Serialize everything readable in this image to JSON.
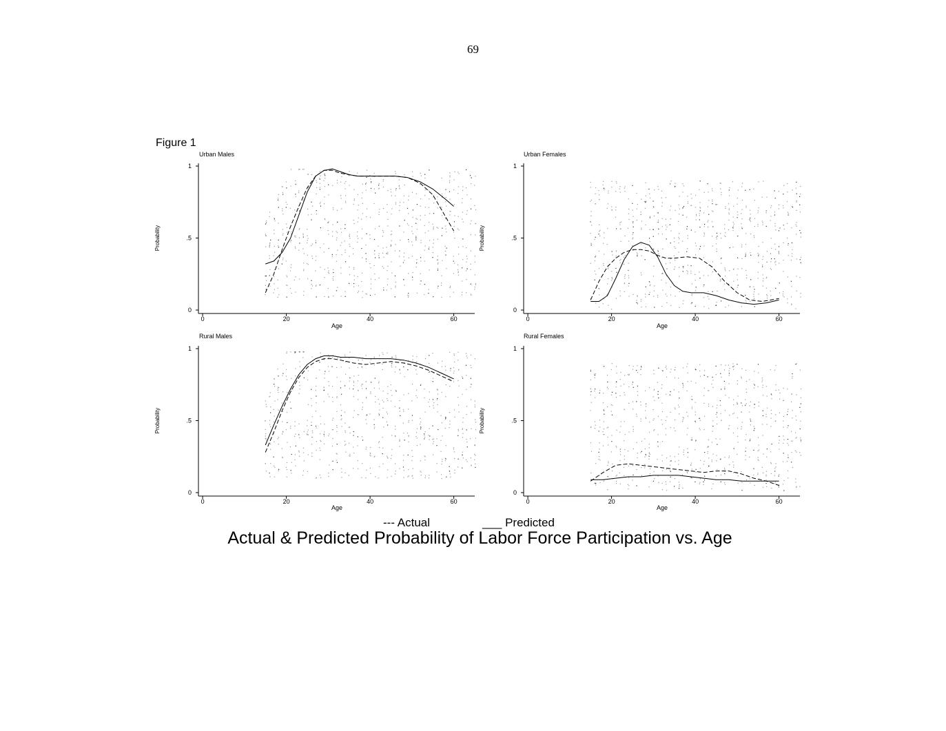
{
  "page_number": "69",
  "figure_label": "Figure 1",
  "legend": {
    "actual": "--- Actual",
    "predicted": "___ Predicted"
  },
  "caption": "Actual & Predicted Probability of Labor Force Participation vs. Age",
  "chart_data": [
    {
      "type": "line",
      "title": "Urban Males",
      "xlabel": "Age",
      "ylabel": "Probability",
      "xlim": [
        -1,
        65
      ],
      "ylim": [
        0,
        1
      ],
      "xticks": [
        0,
        20,
        40,
        60
      ],
      "xtick_labels": [
        "0",
        "20",
        "40",
        "60"
      ],
      "yticks": [
        0,
        0.5,
        1
      ],
      "ytick_labels": [
        "0",
        ".5",
        "1"
      ],
      "series": [
        {
          "style": "dashed",
          "x": [
            15,
            17,
            19,
            21,
            23,
            25,
            27,
            29,
            31,
            33,
            35,
            37,
            40,
            43,
            46,
            49,
            52,
            55,
            57,
            59,
            60
          ],
          "y": [
            0.12,
            0.25,
            0.42,
            0.58,
            0.72,
            0.85,
            0.93,
            0.97,
            0.97,
            0.95,
            0.94,
            0.93,
            0.93,
            0.93,
            0.93,
            0.92,
            0.88,
            0.8,
            0.7,
            0.6,
            0.55
          ]
        },
        {
          "style": "solid",
          "x": [
            15,
            17,
            19,
            21,
            23,
            25,
            27,
            29,
            31,
            33,
            35,
            37,
            40,
            43,
            46,
            49,
            52,
            55,
            58,
            60
          ],
          "y": [
            0.32,
            0.34,
            0.4,
            0.5,
            0.66,
            0.82,
            0.93,
            0.97,
            0.98,
            0.96,
            0.94,
            0.93,
            0.93,
            0.93,
            0.93,
            0.92,
            0.89,
            0.84,
            0.77,
            0.72
          ]
        }
      ],
      "scatter": {
        "x_from": 15,
        "x_to": 65,
        "y_max": 0.98,
        "ramp_end": 25,
        "tail_start": 56,
        "baseline": 0.3
      }
    },
    {
      "type": "line",
      "title": "Urban Females",
      "xlabel": "Age",
      "ylabel": "Probability",
      "xlim": [
        -1,
        65
      ],
      "ylim": [
        0,
        1
      ],
      "xticks": [
        0,
        20,
        40,
        60
      ],
      "xtick_labels": [
        "0",
        "20",
        "40",
        "60"
      ],
      "yticks": [
        0,
        0.5,
        1
      ],
      "ytick_labels": [
        "0",
        ".5",
        "1"
      ],
      "series": [
        {
          "style": "dashed",
          "x": [
            15,
            17,
            19,
            21,
            23,
            25,
            27,
            29,
            31,
            33,
            35,
            38,
            41,
            44,
            47,
            50,
            53,
            56,
            60
          ],
          "y": [
            0.07,
            0.2,
            0.3,
            0.36,
            0.4,
            0.42,
            0.42,
            0.41,
            0.38,
            0.36,
            0.36,
            0.37,
            0.36,
            0.3,
            0.2,
            0.12,
            0.07,
            0.06,
            0.08
          ]
        },
        {
          "style": "solid",
          "x": [
            15,
            17,
            19,
            21,
            23,
            25,
            27,
            29,
            31,
            33,
            35,
            37,
            39,
            42,
            45,
            48,
            51,
            54,
            57,
            60
          ],
          "y": [
            0.06,
            0.06,
            0.1,
            0.22,
            0.35,
            0.44,
            0.47,
            0.45,
            0.37,
            0.25,
            0.17,
            0.13,
            0.12,
            0.12,
            0.1,
            0.07,
            0.05,
            0.04,
            0.05,
            0.07
          ]
        }
      ],
      "scatter": {
        "x_from": 15,
        "x_to": 65,
        "y_max": 0.9,
        "ramp_end": 15,
        "tail_start": 65,
        "baseline": 0.02
      }
    },
    {
      "type": "line",
      "title": "Rural Males",
      "xlabel": "Age",
      "ylabel": "Probability",
      "xlim": [
        -1,
        65
      ],
      "ylim": [
        0,
        1
      ],
      "xticks": [
        0,
        20,
        40,
        60
      ],
      "xtick_labels": [
        "0",
        "20",
        "40",
        "60"
      ],
      "yticks": [
        0,
        0.5,
        1
      ],
      "ytick_labels": [
        "0",
        ".5",
        "1"
      ],
      "series": [
        {
          "style": "dashed",
          "x": [
            15,
            17,
            19,
            21,
            23,
            25,
            27,
            29,
            31,
            33,
            36,
            39,
            42,
            45,
            48,
            51,
            54,
            57,
            60
          ],
          "y": [
            0.28,
            0.42,
            0.57,
            0.7,
            0.8,
            0.87,
            0.91,
            0.93,
            0.93,
            0.92,
            0.9,
            0.89,
            0.9,
            0.91,
            0.9,
            0.88,
            0.85,
            0.81,
            0.77
          ]
        },
        {
          "style": "solid",
          "x": [
            15,
            17,
            19,
            21,
            23,
            25,
            27,
            29,
            31,
            33,
            36,
            39,
            42,
            45,
            48,
            51,
            54,
            57,
            60
          ],
          "y": [
            0.33,
            0.47,
            0.6,
            0.72,
            0.82,
            0.89,
            0.93,
            0.95,
            0.95,
            0.94,
            0.94,
            0.93,
            0.93,
            0.93,
            0.92,
            0.9,
            0.87,
            0.83,
            0.79
          ]
        }
      ],
      "scatter": {
        "x_from": 15,
        "x_to": 65,
        "y_max": 0.98,
        "ramp_end": 25,
        "tail_start": 56,
        "baseline": 0.33
      }
    },
    {
      "type": "line",
      "title": "Rural Females",
      "xlabel": "Age",
      "ylabel": "Probability",
      "xlim": [
        -1,
        65
      ],
      "ylim": [
        0,
        1
      ],
      "xticks": [
        0,
        20,
        40,
        60
      ],
      "xtick_labels": [
        "0",
        "20",
        "40",
        "60"
      ],
      "yticks": [
        0,
        0.5,
        1
      ],
      "ytick_labels": [
        "0",
        ".5",
        "1"
      ],
      "series": [
        {
          "style": "dashed",
          "x": [
            15,
            18,
            21,
            24,
            27,
            30,
            33,
            36,
            39,
            42,
            45,
            48,
            51,
            54,
            57,
            60
          ],
          "y": [
            0.08,
            0.14,
            0.19,
            0.2,
            0.19,
            0.18,
            0.17,
            0.16,
            0.15,
            0.14,
            0.15,
            0.15,
            0.13,
            0.1,
            0.08,
            0.05
          ]
        },
        {
          "style": "solid",
          "x": [
            15,
            18,
            21,
            24,
            27,
            30,
            33,
            36,
            39,
            42,
            45,
            48,
            51,
            54,
            57,
            60
          ],
          "y": [
            0.09,
            0.09,
            0.1,
            0.11,
            0.11,
            0.12,
            0.12,
            0.12,
            0.11,
            0.1,
            0.09,
            0.09,
            0.08,
            0.08,
            0.08,
            0.08
          ]
        }
      ],
      "scatter": {
        "x_from": 15,
        "x_to": 65,
        "y_max": 0.9,
        "ramp_end": 15,
        "tail_start": 65,
        "baseline": 0.05
      }
    }
  ]
}
